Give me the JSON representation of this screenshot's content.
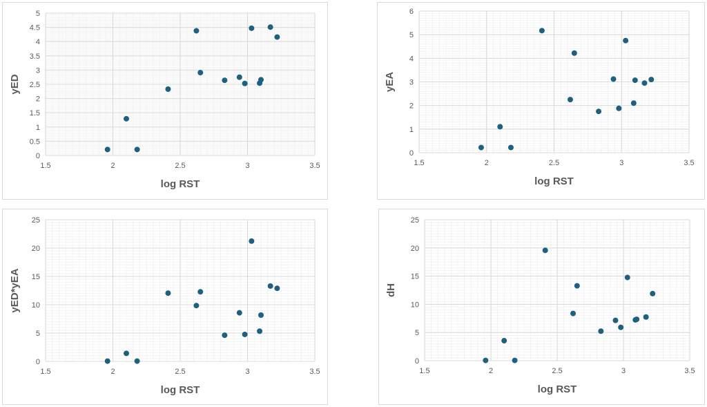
{
  "colors": {
    "marker": "#1f5f7f",
    "major_grid": "#d9d9d9",
    "minor_grid": "#ededed",
    "text": "#595959"
  },
  "chart_data": [
    {
      "type": "scatter",
      "xlabel": "log RST",
      "ylabel": "yED",
      "xlim": [
        1.5,
        3.5
      ],
      "ylim": [
        0,
        5
      ],
      "x_major": 0.5,
      "y_major": 0.5,
      "grid": true,
      "minor_grid": true,
      "x_ticks": [
        "1.5",
        "2",
        "2.5",
        "3",
        "3.5"
      ],
      "y_ticks": [
        "0",
        "0.5",
        "1",
        "1.5",
        "2",
        "2.5",
        "3",
        "3.5",
        "4",
        "4.5",
        "5"
      ],
      "points": [
        {
          "x": 1.96,
          "y": 0.21
        },
        {
          "x": 2.1,
          "y": 1.29
        },
        {
          "x": 2.18,
          "y": 0.21
        },
        {
          "x": 2.41,
          "y": 2.33
        },
        {
          "x": 2.62,
          "y": 4.38
        },
        {
          "x": 2.65,
          "y": 2.91
        },
        {
          "x": 2.83,
          "y": 2.64
        },
        {
          "x": 2.94,
          "y": 2.75
        },
        {
          "x": 2.98,
          "y": 2.53
        },
        {
          "x": 3.03,
          "y": 4.47
        },
        {
          "x": 3.09,
          "y": 2.54
        },
        {
          "x": 3.1,
          "y": 2.66
        },
        {
          "x": 3.17,
          "y": 4.51
        },
        {
          "x": 3.22,
          "y": 4.16
        }
      ]
    },
    {
      "type": "scatter",
      "xlabel": "log RST",
      "ylabel": "yEA",
      "xlim": [
        1.5,
        3.5
      ],
      "ylim": [
        0,
        6
      ],
      "x_major": 0.5,
      "y_major": 1,
      "grid": true,
      "minor_grid": true,
      "x_ticks": [
        "1.5",
        "2",
        "2.5",
        "3",
        "3.5"
      ],
      "y_ticks": [
        "0",
        "1",
        "2",
        "3",
        "4",
        "5",
        "6"
      ],
      "points": [
        {
          "x": 1.96,
          "y": 0.22
        },
        {
          "x": 2.1,
          "y": 1.1
        },
        {
          "x": 2.18,
          "y": 0.22
        },
        {
          "x": 2.41,
          "y": 5.17
        },
        {
          "x": 2.62,
          "y": 2.25
        },
        {
          "x": 2.65,
          "y": 4.22
        },
        {
          "x": 2.83,
          "y": 1.75
        },
        {
          "x": 2.94,
          "y": 3.12
        },
        {
          "x": 2.98,
          "y": 1.88
        },
        {
          "x": 3.03,
          "y": 4.75
        },
        {
          "x": 3.09,
          "y": 2.1
        },
        {
          "x": 3.1,
          "y": 3.07
        },
        {
          "x": 3.17,
          "y": 2.95
        },
        {
          "x": 3.22,
          "y": 3.1
        }
      ]
    },
    {
      "type": "scatter",
      "xlabel": "log RST",
      "ylabel": "yED*yEA",
      "xlim": [
        1.5,
        3.5
      ],
      "ylim": [
        0,
        25
      ],
      "x_major": 0.5,
      "y_major": 5,
      "grid": true,
      "minor_grid": true,
      "x_ticks": [
        "1.5",
        "2",
        "2.5",
        "3",
        "3.5"
      ],
      "y_ticks": [
        "0",
        "5",
        "10",
        "15",
        "20",
        "25"
      ],
      "points": [
        {
          "x": 1.96,
          "y": 0.05
        },
        {
          "x": 2.1,
          "y": 1.42
        },
        {
          "x": 2.18,
          "y": 0.05
        },
        {
          "x": 2.41,
          "y": 12.05
        },
        {
          "x": 2.62,
          "y": 9.85
        },
        {
          "x": 2.65,
          "y": 12.28
        },
        {
          "x": 2.83,
          "y": 4.62
        },
        {
          "x": 2.94,
          "y": 8.58
        },
        {
          "x": 2.98,
          "y": 4.76
        },
        {
          "x": 3.03,
          "y": 21.23
        },
        {
          "x": 3.09,
          "y": 5.33
        },
        {
          "x": 3.1,
          "y": 8.17
        },
        {
          "x": 3.17,
          "y": 13.3
        },
        {
          "x": 3.22,
          "y": 12.9
        }
      ]
    },
    {
      "type": "scatter",
      "xlabel": "log RST",
      "ylabel": "dH",
      "xlim": [
        1.5,
        3.5
      ],
      "ylim": [
        0,
        25
      ],
      "x_major": 0.5,
      "y_major": 5,
      "grid": true,
      "minor_grid": true,
      "x_ticks": [
        "1.5",
        "2",
        "2.5",
        "3",
        "3.5"
      ],
      "y_ticks": [
        "0",
        "5",
        "10",
        "15",
        "20",
        "25"
      ],
      "points": [
        {
          "x": 1.96,
          "y": 0.05
        },
        {
          "x": 2.1,
          "y": 3.55
        },
        {
          "x": 2.18,
          "y": 0.05
        },
        {
          "x": 2.41,
          "y": 19.57
        },
        {
          "x": 2.62,
          "y": 8.38
        },
        {
          "x": 2.65,
          "y": 13.28
        },
        {
          "x": 2.83,
          "y": 5.24
        },
        {
          "x": 2.94,
          "y": 7.15
        },
        {
          "x": 2.98,
          "y": 5.92
        },
        {
          "x": 3.03,
          "y": 14.76
        },
        {
          "x": 3.09,
          "y": 7.24
        },
        {
          "x": 3.1,
          "y": 7.34
        },
        {
          "x": 3.17,
          "y": 7.75
        },
        {
          "x": 3.22,
          "y": 11.9
        }
      ]
    }
  ]
}
